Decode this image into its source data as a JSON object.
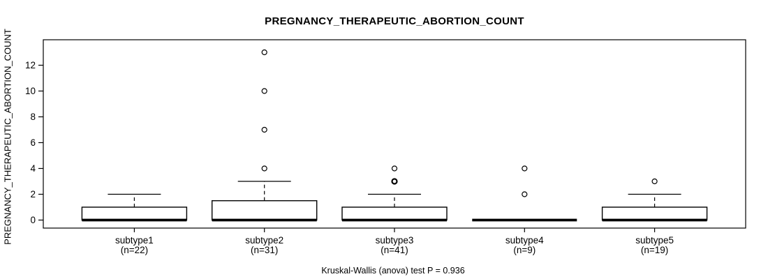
{
  "colors": {
    "background": "#ffffff",
    "foreground": "#000000"
  },
  "chart_data": {
    "type": "boxplot",
    "title": "PREGNANCY_THERAPEUTIC_ABORTION_COUNT",
    "ylabel": "PREGNANCY_THERAPEUTIC_ABORTION_COUNT",
    "caption": "Kruskal-Wallis (anova) test P = 0.936",
    "ylim": [
      0,
      13
    ],
    "yticks": [
      0,
      2,
      4,
      6,
      8,
      10,
      12
    ],
    "grid": false,
    "legend": "none",
    "groups": [
      {
        "label": "subtype1",
        "n_label": "(n=22)",
        "n": 22,
        "q1": 0,
        "median": 0,
        "q3": 1,
        "whisker_low": 0,
        "whisker_high": 2,
        "outliers": []
      },
      {
        "label": "subtype2",
        "n_label": "(n=31)",
        "n": 31,
        "q1": 0,
        "median": 0,
        "q3": 1.5,
        "whisker_low": 0,
        "whisker_high": 3,
        "outliers": [
          4,
          7,
          10,
          13
        ]
      },
      {
        "label": "subtype3",
        "n_label": "(n=41)",
        "n": 41,
        "q1": 0,
        "median": 0,
        "q3": 1,
        "whisker_low": 0,
        "whisker_high": 2,
        "outliers": [
          3,
          3,
          4
        ]
      },
      {
        "label": "subtype4",
        "n_label": "(n=9)",
        "n": 9,
        "q1": 0,
        "median": 0,
        "q3": 0,
        "whisker_low": 0,
        "whisker_high": 0,
        "outliers": [
          2,
          4
        ]
      },
      {
        "label": "subtype5",
        "n_label": "(n=19)",
        "n": 19,
        "q1": 0,
        "median": 0,
        "q3": 1,
        "whisker_low": 0,
        "whisker_high": 2,
        "outliers": [
          3
        ]
      }
    ]
  }
}
